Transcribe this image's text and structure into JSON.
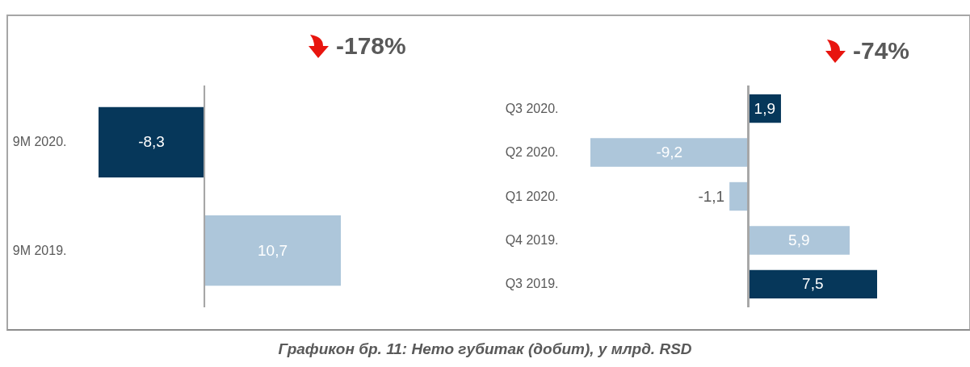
{
  "chart_data": [
    {
      "type": "bar",
      "orientation": "horizontal",
      "title": "-178%",
      "categories": [
        "9M 2020.",
        "9M 2019."
      ],
      "values": [
        -8.3,
        10.7
      ],
      "colors": [
        "#06375a",
        "#adc6da"
      ],
      "value_labels": [
        "-8,3",
        "10,7"
      ]
    },
    {
      "type": "bar",
      "orientation": "horizontal",
      "title": "-74%",
      "categories": [
        "Q3 2020.",
        "Q2 2020.",
        "Q1 2020.",
        "Q4 2019.",
        "Q3 2019."
      ],
      "values": [
        1.9,
        -9.2,
        -1.1,
        5.9,
        7.5
      ],
      "colors": [
        "#06375a",
        "#adc6da",
        "#adc6da",
        "#adc6da",
        "#06375a"
      ],
      "value_labels": [
        "1,9",
        "-9,2",
        "-1,1",
        "5,9",
        "7,5"
      ],
      "annotations": [
        "Графикон бр. 11: Нето губитак (добит), у млрд. RSD"
      ]
    }
  ]
}
